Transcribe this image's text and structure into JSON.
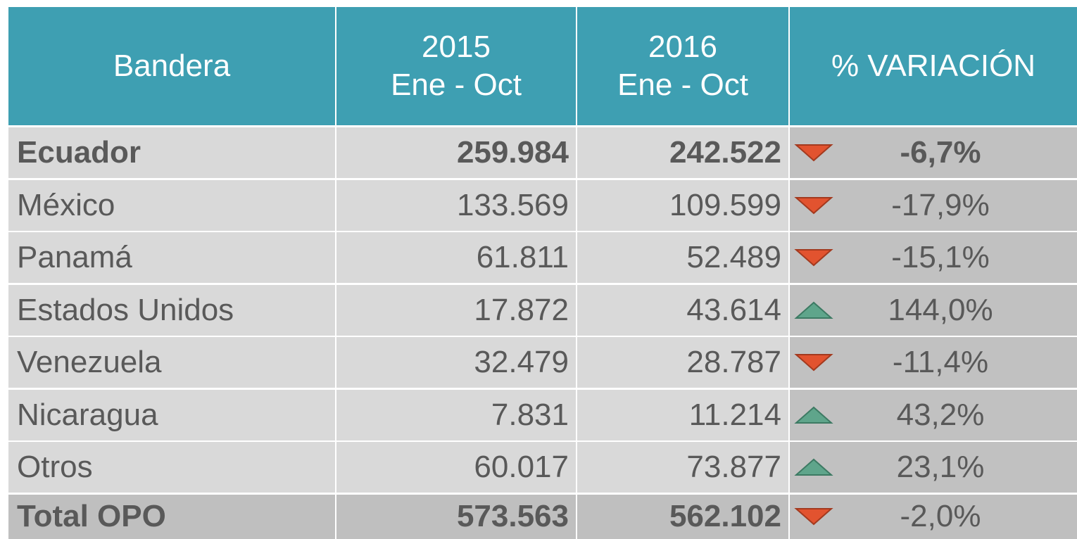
{
  "table": {
    "header": [
      [
        "Bandera"
      ],
      [
        "2015",
        "Ene - Oct"
      ],
      [
        "2016",
        "Ene - Oct"
      ],
      [
        "% VARIACIÓN"
      ]
    ],
    "rows": [
      [
        "Ecuador",
        "259.984",
        "242.522",
        "-6,7%"
      ],
      [
        "México",
        "133.569",
        "109.599",
        "-17,9%"
      ],
      [
        "Panamá",
        "61.811",
        "52.489",
        "-15,1%"
      ],
      [
        "Estados Unidos",
        "17.872",
        "43.614",
        "144,0%"
      ],
      [
        "Venezuela",
        "32.479",
        "28.787",
        "-11,4%"
      ],
      [
        "Nicaragua",
        "7.831",
        "11.214",
        "43,2%"
      ],
      [
        "Otros",
        "60.017",
        "73.877",
        "23,1%"
      ]
    ],
    "total": [
      "Total OPO",
      "573.563",
      "562.102",
      "-2,0%"
    ]
  }
}
